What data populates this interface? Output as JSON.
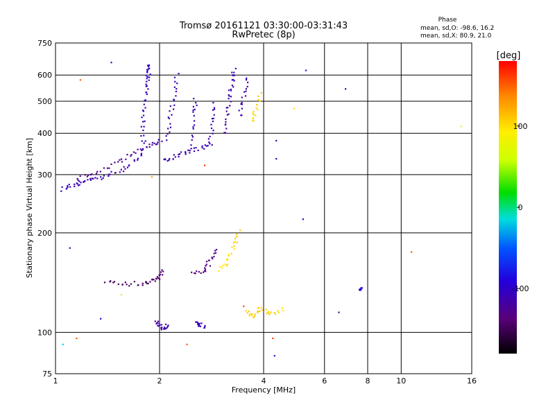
{
  "chart_data": {
    "type": "scatter",
    "title": "Tromsø 20161121 03:30:00-03:31:43",
    "subtitle": "RwPretec (8p)",
    "xlabel": "Frequency [MHz]",
    "ylabel": "Stationary phase Virtual Height [km]",
    "x_scale": "log",
    "y_scale": "log",
    "xlim": [
      1,
      16
    ],
    "ylim": [
      75,
      750
    ],
    "x_ticks": [
      1,
      2,
      4,
      6,
      8,
      10,
      16
    ],
    "y_ticks": [
      75,
      100,
      200,
      300,
      400,
      500,
      600,
      750
    ],
    "grid": true,
    "stats": {
      "header": "Phase",
      "line1": "mean, sd,O:  -98.6, 16.2",
      "line2": "mean, sd,X:  80.9, 21.0"
    },
    "colorbar": {
      "label": "[deg]",
      "range": [
        -180,
        180
      ],
      "ticks": [
        -100,
        0,
        100
      ]
    },
    "traces": [
      {
        "x": [
          1.05,
          1.12,
          1.2,
          1.3,
          1.45,
          1.6,
          1.75,
          1.85
        ],
        "y": [
          270,
          280,
          285,
          290,
          300,
          315,
          340,
          380
        ],
        "phase": [
          -105,
          -108,
          -112,
          -115,
          -118,
          -116,
          -114,
          -112
        ]
      },
      {
        "x": [
          1.15,
          1.3,
          1.5,
          1.7,
          1.9,
          2.05
        ],
        "y": [
          290,
          305,
          325,
          350,
          370,
          380
        ],
        "phase": [
          -125,
          -128,
          -130,
          -126,
          -120,
          -116
        ]
      },
      {
        "x": [
          1.78,
          1.8,
          1.82,
          1.84,
          1.86,
          1.88
        ],
        "y": [
          380,
          450,
          520,
          580,
          620,
          650
        ],
        "phase": [
          -112,
          -110,
          -108,
          -106,
          -105,
          -104
        ]
      },
      {
        "x": [
          2.05,
          2.2,
          2.4,
          2.6,
          2.8
        ],
        "y": [
          330,
          340,
          350,
          360,
          370
        ],
        "phase": [
          -118,
          -116,
          -114,
          -112,
          -110
        ]
      },
      {
        "x": [
          2.1,
          2.15,
          2.2,
          2.25
        ],
        "y": [
          380,
          450,
          520,
          610
        ],
        "phase": [
          -115,
          -112,
          -110,
          -108
        ]
      },
      {
        "x": [
          2.45,
          2.5,
          2.55
        ],
        "y": [
          370,
          450,
          520
        ],
        "phase": [
          -110,
          -108,
          -106
        ]
      },
      {
        "x": [
          2.8,
          2.85,
          2.9
        ],
        "y": [
          370,
          430,
          500
        ],
        "phase": [
          -112,
          -110,
          -108
        ]
      },
      {
        "x": [
          3.1,
          3.15,
          3.2,
          3.25,
          3.3
        ],
        "y": [
          400,
          460,
          520,
          580,
          630
        ],
        "phase": [
          -125,
          -120,
          -115,
          -112,
          -110
        ]
      },
      {
        "x": [
          3.4,
          3.5,
          3.6
        ],
        "y": [
          450,
          520,
          600
        ],
        "phase": [
          -118,
          -115,
          -112
        ]
      },
      {
        "x": [
          3.7,
          3.8,
          3.9
        ],
        "y": [
          430,
          470,
          530
        ],
        "phase": [
          100,
          105,
          110
        ]
      },
      {
        "x": [
          1.4,
          1.6,
          1.8,
          1.9,
          2.0,
          2.05
        ],
        "y": [
          142,
          140,
          141,
          143,
          147,
          155
        ],
        "phase": [
          -150,
          -148,
          -146,
          -145,
          -142,
          -140
        ]
      },
      {
        "x": [
          2.5,
          2.7,
          2.8,
          2.9
        ],
        "y": [
          150,
          155,
          165,
          180
        ],
        "phase": [
          -140,
          -138,
          -135,
          -130
        ]
      },
      {
        "x": [
          3.0,
          3.15,
          3.3,
          3.4
        ],
        "y": [
          155,
          165,
          185,
          205
        ],
        "phase": [
          95,
          100,
          105,
          110
        ]
      },
      {
        "x": [
          1.95,
          2.0,
          2.05,
          2.15
        ],
        "y": [
          108,
          105,
          103,
          106
        ],
        "phase": [
          -120,
          -118,
          -115,
          -112
        ]
      },
      {
        "x": [
          2.55,
          2.6,
          2.75
        ],
        "y": [
          107,
          106,
          104
        ],
        "phase": [
          -110,
          -108,
          -106
        ]
      },
      {
        "x": [
          3.6,
          3.75,
          3.9,
          4.2,
          4.6
        ],
        "y": [
          115,
          112,
          118,
          113,
          118
        ],
        "phase": [
          105,
          108,
          110,
          106,
          104
        ]
      },
      {
        "x": [
          7.5,
          7.7
        ],
        "y": [
          133,
          136
        ],
        "phase": [
          -95,
          -92
        ]
      }
    ],
    "scatter_points": [
      {
        "x": 1.45,
        "y": 655,
        "phase": -110
      },
      {
        "x": 1.35,
        "y": 110,
        "phase": -100
      },
      {
        "x": 1.1,
        "y": 180,
        "phase": -110
      },
      {
        "x": 1.18,
        "y": 580,
        "phase": 150
      },
      {
        "x": 4.35,
        "y": 380,
        "phase": -105
      },
      {
        "x": 4.35,
        "y": 335,
        "phase": -110
      },
      {
        "x": 4.9,
        "y": 475,
        "phase": 100
      },
      {
        "x": 5.3,
        "y": 620,
        "phase": -80
      },
      {
        "x": 5.2,
        "y": 220,
        "phase": -100
      },
      {
        "x": 6.9,
        "y": 545,
        "phase": -105
      },
      {
        "x": 10.7,
        "y": 175,
        "phase": 150
      },
      {
        "x": 14.9,
        "y": 420,
        "phase": 60
      },
      {
        "x": 6.6,
        "y": 115,
        "phase": -120
      },
      {
        "x": 4.3,
        "y": 85,
        "phase": -110
      },
      {
        "x": 1.05,
        "y": 92,
        "phase": -20
      },
      {
        "x": 1.15,
        "y": 96,
        "phase": 150
      },
      {
        "x": 2.4,
        "y": 92,
        "phase": 150
      },
      {
        "x": 1.55,
        "y": 130,
        "phase": 60
      },
      {
        "x": 3.5,
        "y": 120,
        "phase": 160
      },
      {
        "x": 4.25,
        "y": 96,
        "phase": 160
      },
      {
        "x": 1.9,
        "y": 295,
        "phase": 130
      },
      {
        "x": 2.7,
        "y": 320,
        "phase": 160
      }
    ]
  }
}
